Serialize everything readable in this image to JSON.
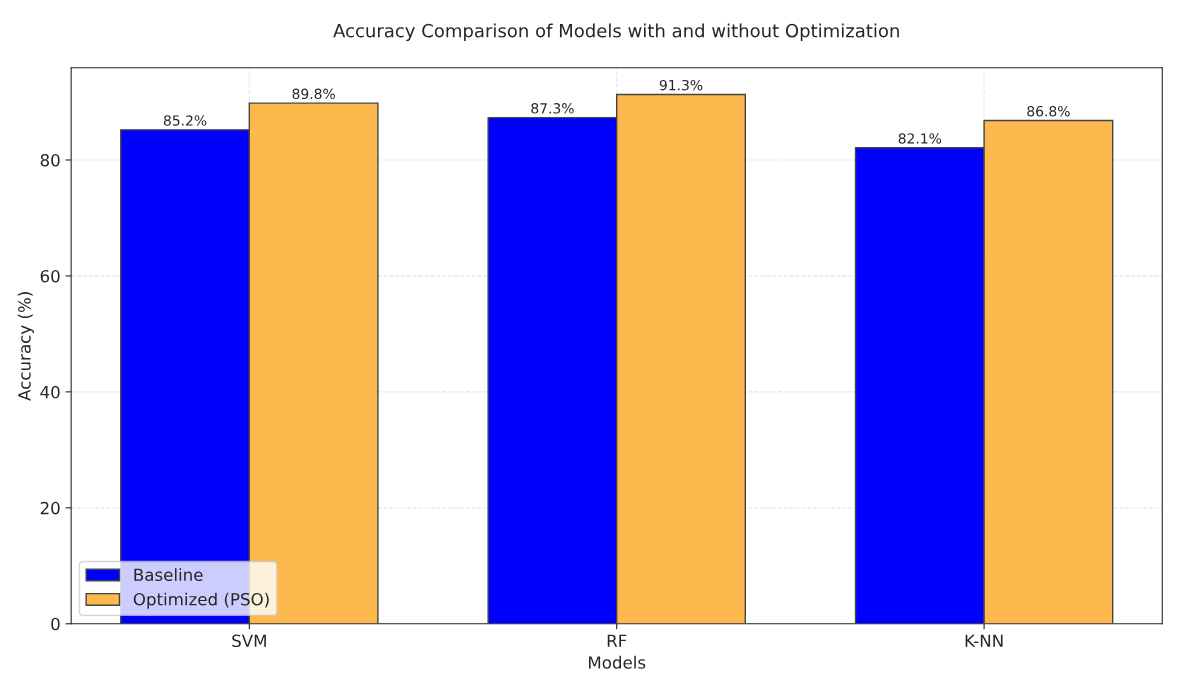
{
  "chart_data": {
    "type": "bar",
    "title": "Accuracy Comparison of Models with and without Optimization",
    "xlabel": "Models",
    "ylabel": "Accuracy (%)",
    "categories": [
      "SVM",
      "RF",
      "K-NN"
    ],
    "series": [
      {
        "name": "Baseline",
        "color": "#0000ff",
        "values": [
          85.2,
          87.3,
          82.1
        ],
        "value_labels": [
          "85.2%",
          "87.3%",
          "82.1%"
        ]
      },
      {
        "name": "Optimized (PSO)",
        "color": "#fdb94d",
        "values": [
          89.8,
          91.3,
          86.8
        ],
        "value_labels": [
          "89.8%",
          "91.3%",
          "86.8%"
        ]
      }
    ],
    "ylim": [
      0,
      95.9
    ],
    "yticks": [
      0,
      20,
      40,
      60,
      80
    ],
    "grid": true,
    "legend": "bottom left"
  }
}
